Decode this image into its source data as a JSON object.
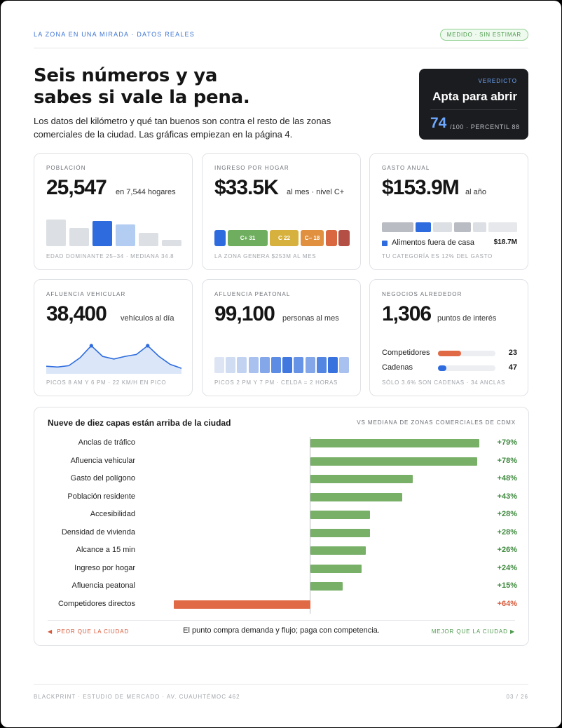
{
  "header": {
    "kicker": "LA ZONA EN UNA MIRADA · DATOS REALES",
    "badge": "MEDIDO · SIN ESTIMAR"
  },
  "hero": {
    "title_line1": "Seis números y ya",
    "title_line2": "sabes si vale la pena.",
    "lede": "Los datos del kilómetro y qué tan buenos son contra el resto de las zonas comerciales de la ciudad. Las gráficas empiezan en la página 4."
  },
  "verdict": {
    "kicker": "VEREDICTO",
    "title": "Apta para abrir",
    "score": "74",
    "rest": "/100 · PERCENTIL 88"
  },
  "cards": {
    "poblacion": {
      "kicker": "POBLACIÓN",
      "value": "25,547",
      "unit": "en 7,544 hogares",
      "foot": "EDAD DOMINANTE 25–34 · MEDIANA 34.8",
      "bars": [
        0.95,
        0.65,
        0.9,
        0.78,
        0.47,
        0.22
      ]
    },
    "ingreso": {
      "kicker": "INGRESO POR HOGAR",
      "value": "$33.5K",
      "unit": "al mes · nivel C+",
      "foot": "LA ZONA GENERA $253M AL MES",
      "segments": [
        {
          "label": "",
          "color": "#2d6bde"
        },
        {
          "label": "C+ 31",
          "color": "#6fae5f"
        },
        {
          "label": "C 22",
          "color": "#d7b13e"
        },
        {
          "label": "C− 18",
          "color": "#e0903f"
        },
        {
          "label": "",
          "color": "#d9673f"
        },
        {
          "label": "",
          "color": "#b34f45"
        }
      ]
    },
    "gasto": {
      "kicker": "GASTO ANUAL",
      "value": "$153.9M",
      "unit": "al año",
      "foot": "TU CATEGORÍA ES 12% DEL GASTO",
      "legend_label": "Alimentos fuera de casa",
      "legend_value": "$18.7M"
    },
    "vehicular": {
      "kicker": "AFLUENCIA VEHICULAR",
      "value": "38,400",
      "unit": "vehículos al día",
      "foot": "PICOS 8 AM Y 6 PM · 22 KM/H EN PICO",
      "curve": [
        0.18,
        0.15,
        0.2,
        0.5,
        0.95,
        0.55,
        0.45,
        0.55,
        0.62,
        0.95,
        0.55,
        0.25,
        0.1
      ]
    },
    "peatonal": {
      "kicker": "AFLUENCIA PEATONAL",
      "value": "99,100",
      "unit": "personas al mes",
      "foot": "PICOS 2 PM Y 7 PM · CELDA = 2 HORAS",
      "cells": [
        0.08,
        0.15,
        0.22,
        0.35,
        0.55,
        0.75,
        0.9,
        0.7,
        0.55,
        0.8,
        0.95,
        0.35
      ]
    },
    "negocios": {
      "kicker": "NEGOCIOS ALREDEDOR",
      "value": "1,306",
      "unit": "puntos de interés",
      "foot": "SÓLO 3.6% SON CADENAS · 34 ANCLAS",
      "rows": [
        {
          "label": "Competidores",
          "value": "23",
          "fill": 0.4,
          "color": "#e06a45"
        },
        {
          "label": "Cadenas",
          "value": "47",
          "fill": 0.15,
          "color": "#2d6bde"
        }
      ]
    }
  },
  "panel": {
    "title": "Nueve de diez capas están arriba de la ciudad",
    "kicker": "VS MEDIANA DE ZONAS COMERCIALES DE CDMX",
    "left": "PEOR QUE LA CIUDAD",
    "center": "El punto compra demanda y flujo; paga con competencia.",
    "right": "MEJOR QUE LA CIUDAD ▶",
    "left_arrow": "◀"
  },
  "chart_data": {
    "type": "bar",
    "title": "Nueve de diez capas están arriba de la ciudad",
    "categories": [
      "Anclas de tráfico",
      "Afluencia vehicular",
      "Gasto del polígono",
      "Población residente",
      "Accesibilidad",
      "Densidad de vivienda",
      "Alcance a 15 min",
      "Ingreso por hogar",
      "Afluencia peatonal",
      "Competidores directos"
    ],
    "labels": [
      "+79%",
      "+78%",
      "+48%",
      "+43%",
      "+28%",
      "+28%",
      "+26%",
      "+24%",
      "+15%",
      "+64%"
    ],
    "values": [
      79,
      78,
      48,
      43,
      28,
      28,
      26,
      24,
      15,
      -64
    ],
    "direction": [
      "better",
      "better",
      "better",
      "better",
      "better",
      "better",
      "better",
      "better",
      "better",
      "worse"
    ],
    "colors": {
      "better": "#79b068",
      "worse": "#e06a45",
      "better_text": "#3f8a3f",
      "worse_text": "#d6593a"
    }
  },
  "footer": {
    "left": "BLACKPRINT · ESTUDIO DE MERCADO · AV. CUAUHTÉMOC 462",
    "right": "03 / 26"
  }
}
